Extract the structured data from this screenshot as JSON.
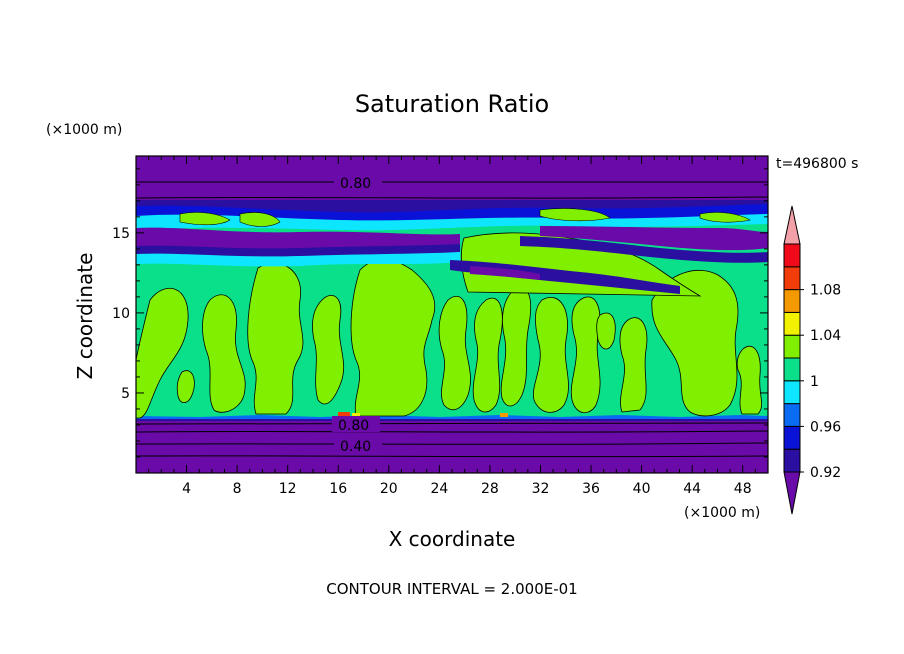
{
  "chart_data": {
    "type": "heatmap",
    "title": "Saturation Ratio",
    "xlabel": "X coordinate",
    "ylabel": "Z coordinate",
    "x_unit": "(×1000 m)",
    "y_unit": "(×1000 m)",
    "time_label": "t=496800 s",
    "footer": "CONTOUR INTERVAL = 2.000E-01",
    "xlim": [
      0,
      50
    ],
    "ylim": [
      0,
      19.8
    ],
    "xticks": [
      "4",
      "8",
      "12",
      "16",
      "20",
      "24",
      "28",
      "32",
      "36",
      "40",
      "44",
      "48"
    ],
    "yticks": [
      "5",
      "10",
      "15"
    ],
    "contour_labels": [
      "0.80",
      "0.80",
      "0.40"
    ],
    "colorbar": {
      "labels": [
        "1.08",
        "1.04",
        "1",
        "0.96",
        "0.92"
      ],
      "levels": [
        0.92,
        0.94,
        0.96,
        0.98,
        1.0,
        1.02,
        1.04,
        1.06,
        1.08,
        1.1
      ],
      "colors": [
        "#6a0aa8",
        "#2a0fa0",
        "#0a12d8",
        "#0a6cf2",
        "#0ee6ff",
        "#0ae08a",
        "#80f000",
        "#f2f200",
        "#f49a00",
        "#f23c0a",
        "#f00a1a",
        "#f4a0a8"
      ]
    }
  }
}
